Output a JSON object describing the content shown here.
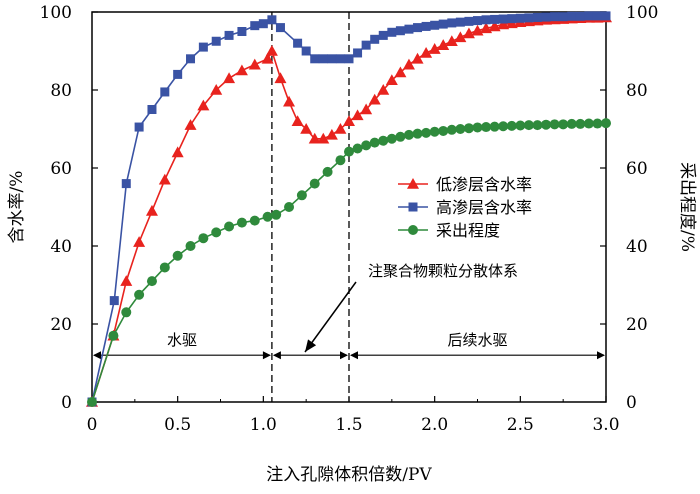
{
  "chart_data": {
    "type": "line",
    "xlabel": "注入孔隙体积倍数/PV",
    "ylabel_left": "含水率/%",
    "ylabel_right": "采出程度/%",
    "xlim": [
      0,
      3.0
    ],
    "ylim_left": [
      0,
      100
    ],
    "ylim_right": [
      0,
      100
    ],
    "x_ticks": [
      "0",
      "0.5",
      "1.0",
      "1.5",
      "2.0",
      "2.5",
      "3.0"
    ],
    "x_tick_values": [
      0,
      0.5,
      1.0,
      1.5,
      2.0,
      2.5,
      3.0
    ],
    "y_ticks_left": [
      "0",
      "20",
      "40",
      "60",
      "80",
      "100"
    ],
    "y_ticks_right": [
      "0",
      "20",
      "40",
      "60",
      "80",
      "100"
    ],
    "y_tick_values": [
      0,
      20,
      40,
      60,
      80,
      100
    ],
    "legend_position": "center-right",
    "colors": {
      "low": "#e8231e",
      "high": "#3a53a4",
      "recovery": "#2f8a3c"
    },
    "series": [
      {
        "name": "低渗层含水率",
        "key": "low",
        "marker": "triangle",
        "x": [
          0.0,
          0.125,
          0.2,
          0.275,
          0.35,
          0.425,
          0.5,
          0.575,
          0.65,
          0.725,
          0.8,
          0.875,
          0.95,
          1.025,
          1.05,
          1.1,
          1.15,
          1.2,
          1.25,
          1.3,
          1.35,
          1.4,
          1.45,
          1.5,
          1.55,
          1.6,
          1.65,
          1.7,
          1.75,
          1.8,
          1.85,
          1.9,
          1.95,
          2.0,
          2.05,
          2.1,
          2.15,
          2.2,
          2.25,
          2.3,
          2.35,
          2.4,
          2.45,
          2.5,
          2.55,
          2.6,
          2.65,
          2.7,
          2.75,
          2.8,
          2.85,
          2.9,
          2.95,
          3.0
        ],
        "values": [
          0,
          17,
          31,
          41,
          49,
          57,
          64,
          71,
          76,
          80,
          83,
          85,
          86.5,
          88,
          90,
          83,
          77,
          72,
          70,
          67.5,
          67.5,
          68.5,
          70,
          72,
          73.5,
          75,
          77.5,
          80,
          82.5,
          84.5,
          86.5,
          88,
          89.5,
          90.5,
          91.5,
          92.5,
          93.5,
          94.5,
          95.2,
          95.8,
          96.3,
          96.8,
          97.1,
          97.4,
          97.6,
          97.8,
          98.0,
          98.1,
          98.2,
          98.3,
          98.4,
          98.5,
          98.5,
          98.6
        ]
      },
      {
        "name": "高渗层含水率",
        "key": "high",
        "marker": "square",
        "x": [
          0.0,
          0.13,
          0.2,
          0.275,
          0.35,
          0.425,
          0.5,
          0.575,
          0.65,
          0.725,
          0.8,
          0.875,
          0.95,
          1.0,
          1.05,
          1.1,
          1.2,
          1.25,
          1.3,
          1.35,
          1.4,
          1.45,
          1.5,
          1.55,
          1.6,
          1.65,
          1.7,
          1.75,
          1.8,
          1.85,
          1.9,
          1.95,
          2.0,
          2.05,
          2.1,
          2.15,
          2.2,
          2.25,
          2.3,
          2.35,
          2.4,
          2.45,
          2.5,
          2.55,
          2.6,
          2.65,
          2.7,
          2.75,
          2.8,
          2.85,
          2.9,
          2.95,
          3.0
        ],
        "values": [
          0,
          26,
          56,
          70.5,
          75,
          79.5,
          84,
          88,
          91,
          92.5,
          94,
          95,
          96.5,
          97,
          98,
          96,
          92,
          90,
          88,
          88,
          88,
          88,
          88,
          89.5,
          91.5,
          93,
          94,
          94.8,
          95.2,
          95.6,
          96,
          96.3,
          96.6,
          96.9,
          97.2,
          97.4,
          97.6,
          97.8,
          98.0,
          98.1,
          98.2,
          98.3,
          98.4,
          98.5,
          98.6,
          98.7,
          98.8,
          98.8,
          98.9,
          98.9,
          99.0,
          99.0,
          99.0
        ]
      },
      {
        "name": "采出程度",
        "key": "recovery",
        "marker": "circle",
        "x": [
          0.0,
          0.125,
          0.2,
          0.275,
          0.35,
          0.425,
          0.5,
          0.575,
          0.65,
          0.725,
          0.8,
          0.875,
          0.95,
          1.025,
          1.075,
          1.15,
          1.225,
          1.3,
          1.375,
          1.45,
          1.5,
          1.55,
          1.6,
          1.65,
          1.7,
          1.75,
          1.8,
          1.85,
          1.9,
          1.95,
          2.0,
          2.05,
          2.1,
          2.15,
          2.2,
          2.25,
          2.3,
          2.35,
          2.4,
          2.45,
          2.5,
          2.55,
          2.6,
          2.65,
          2.7,
          2.75,
          2.8,
          2.85,
          2.9,
          2.95,
          3.0
        ],
        "values": [
          0,
          17,
          23,
          27.5,
          31,
          34.5,
          37.5,
          40,
          42,
          43.5,
          45,
          46,
          46.5,
          47.5,
          48,
          50,
          53,
          56,
          59,
          62,
          64.2,
          65,
          65.8,
          66.5,
          67,
          67.5,
          68,
          68.5,
          68.8,
          69,
          69.3,
          69.5,
          69.8,
          70,
          70.2,
          70.4,
          70.5,
          70.6,
          70.7,
          70.8,
          70.9,
          71,
          71,
          71.1,
          71.2,
          71.2,
          71.3,
          71.3,
          71.4,
          71.4,
          71.5
        ]
      }
    ],
    "phase_lines_x": [
      1.05,
      1.5
    ],
    "phases": [
      {
        "label": "水驱",
        "from": 0,
        "to": 1.05
      },
      {
        "label": "",
        "from": 1.05,
        "to": 1.5
      },
      {
        "label": "后续水驱",
        "from": 1.5,
        "to": 3.0
      }
    ],
    "annotation": {
      "text": "注聚合物颗粒分散体系",
      "points_to": {
        "x": 1.25,
        "y": 12
      }
    }
  }
}
